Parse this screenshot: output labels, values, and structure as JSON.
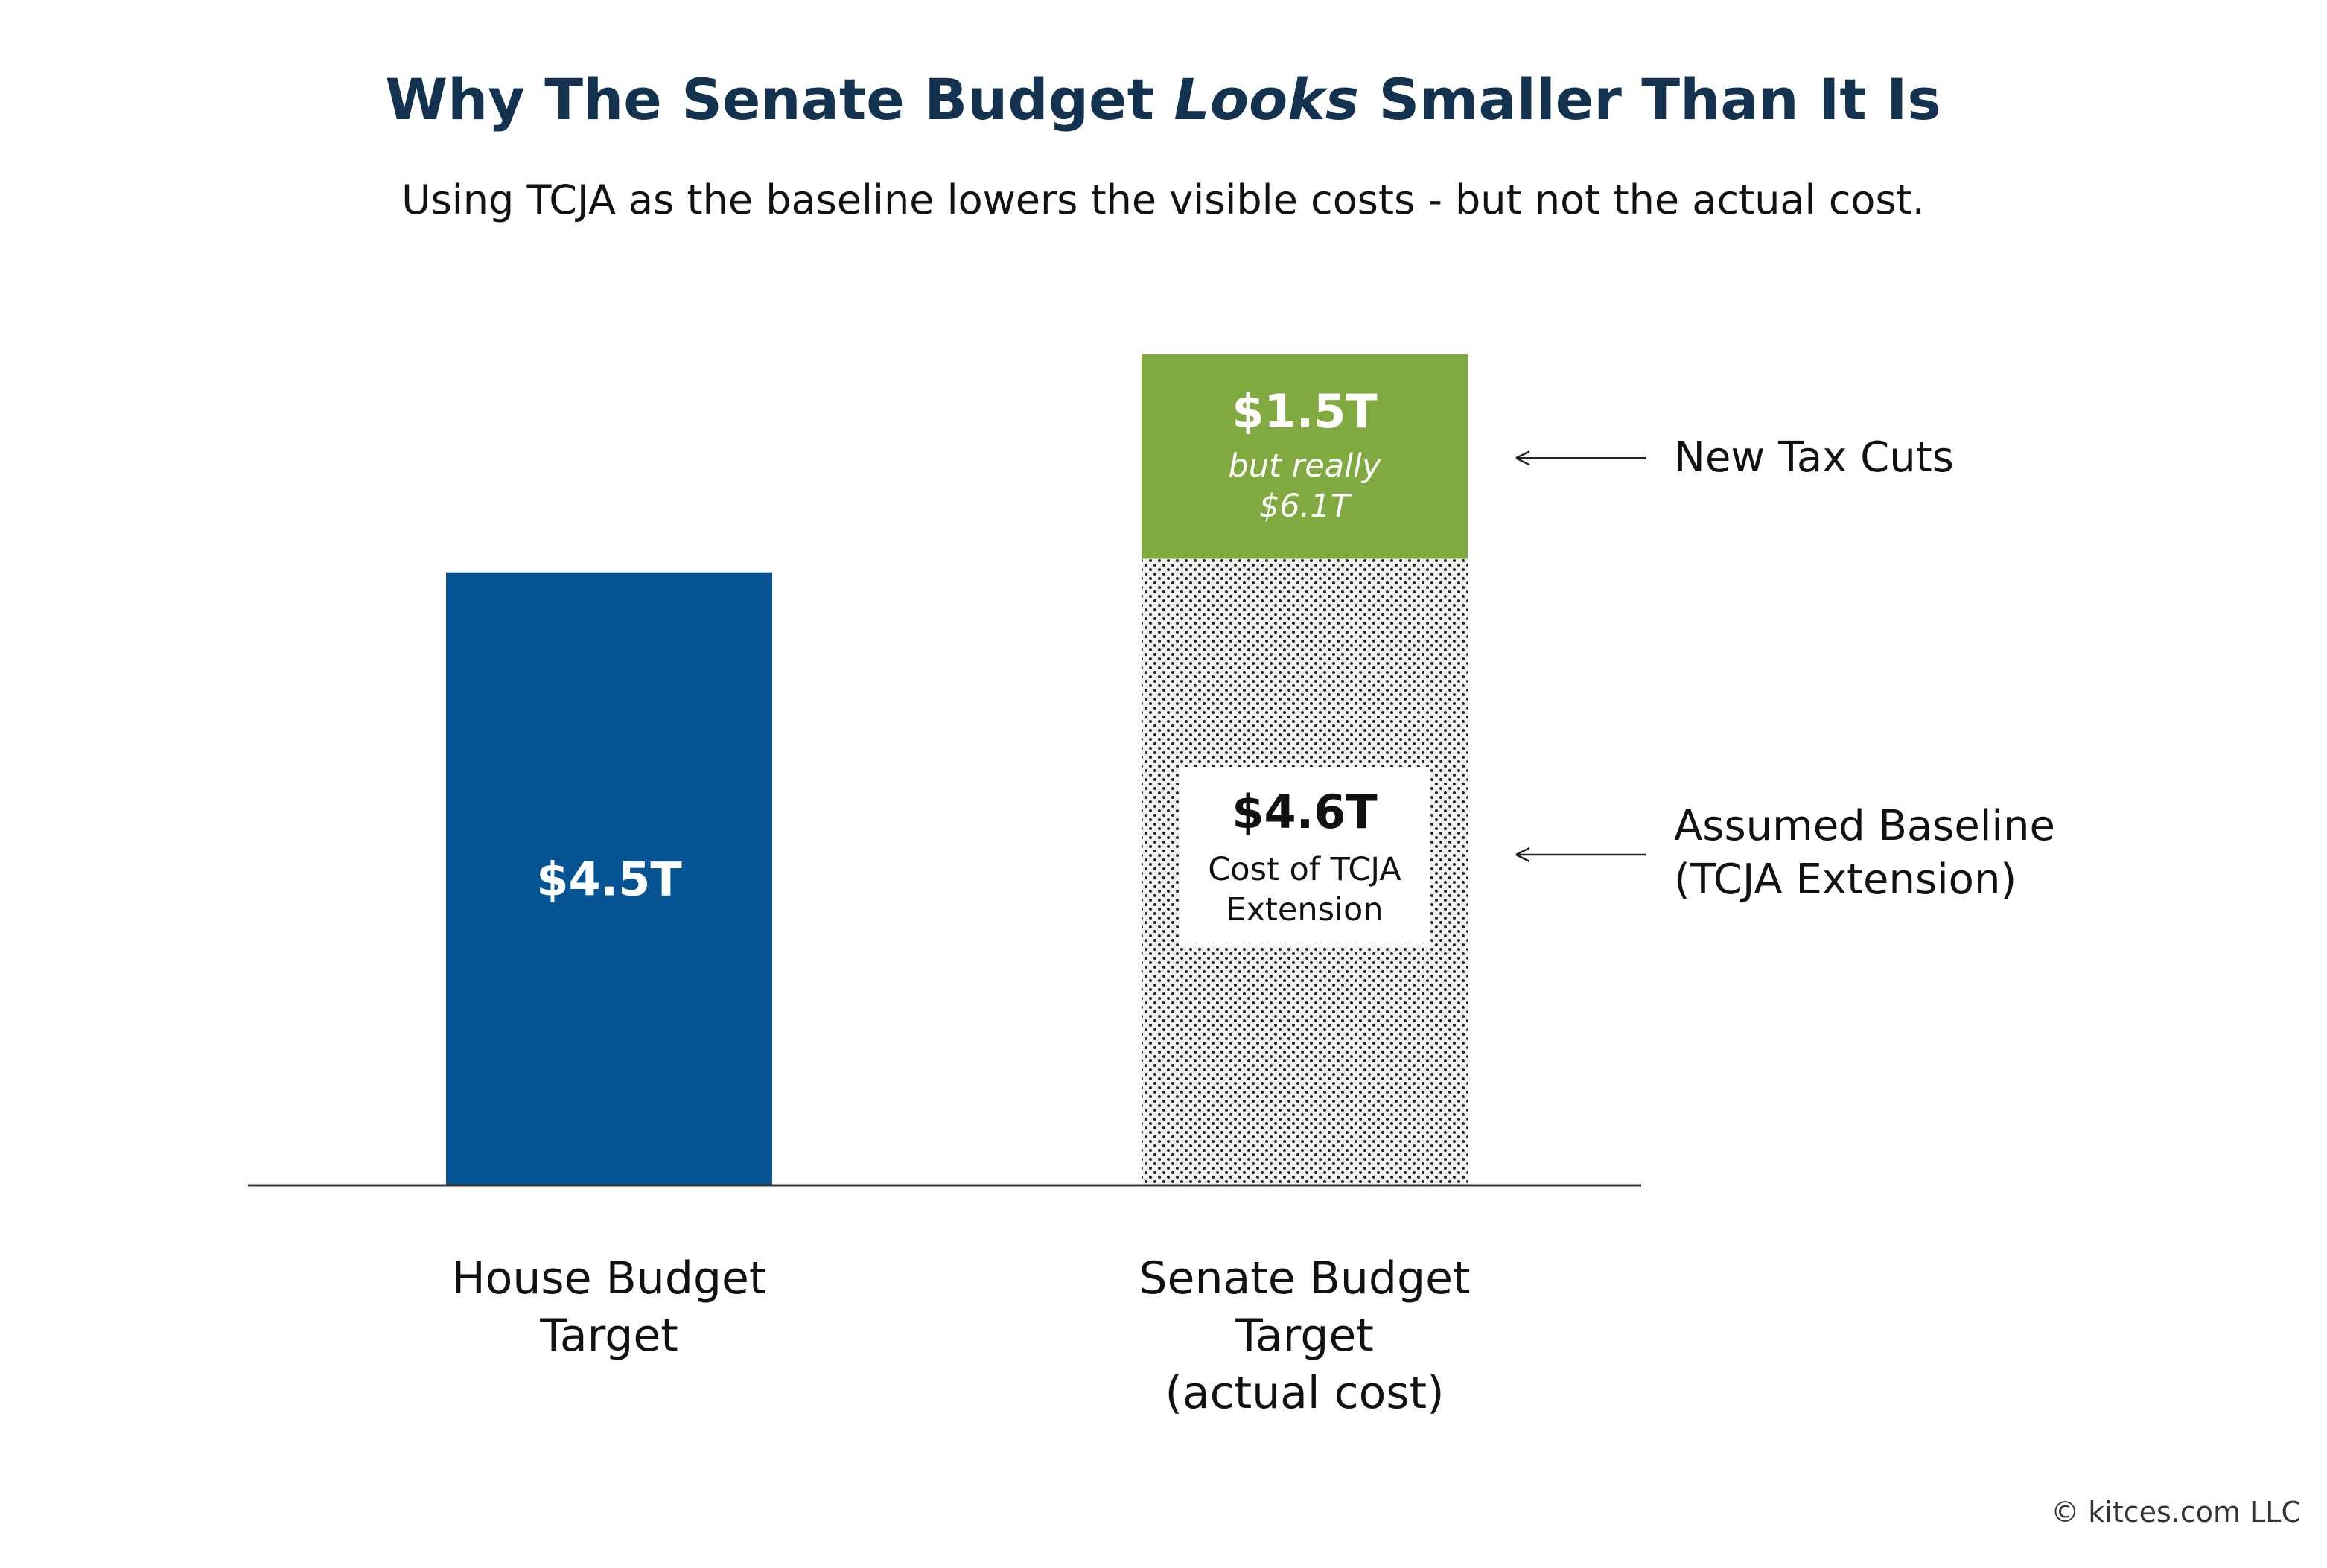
{
  "title_part1": "Why The Senate Budget ",
  "title_emphasis": "Looks",
  "title_part2": " Smaller Than It Is",
  "subtitle": "Using TCJA as the baseline lowers the visible costs - but not the actual cost.",
  "copyright": "© kitces.com LLC",
  "colors": {
    "title": "#12324f",
    "house_bar": "#065493",
    "new_tax_cuts": "#80a940",
    "baseline_dots": "#222222",
    "baseline_bg": "#f2f2f2"
  },
  "chart_data": {
    "type": "bar",
    "stacked": true,
    "categories": [
      [
        "House Budget",
        "Target"
      ],
      [
        "Senate Budget",
        "Target",
        "(actual cost)"
      ]
    ],
    "series": [
      {
        "name": "Assumed Baseline (TCJA Extension)",
        "values": [
          null,
          4.6
        ],
        "labels": [
          null,
          {
            "value": "$4.6T",
            "lines": [
              "Cost of TCJA",
              "Extension"
            ]
          }
        ]
      },
      {
        "name": "New Tax Cuts",
        "values": [
          null,
          1.5
        ],
        "labels": [
          null,
          {
            "value": "$1.5T",
            "lines": [
              "but really",
              "$6.1T"
            ]
          }
        ]
      }
    ],
    "house_bar": {
      "value": 4.5,
      "label": "$4.5T"
    },
    "annotations": [
      {
        "target": "New Tax Cuts",
        "lines": [
          "New Tax Cuts"
        ]
      },
      {
        "target": "Assumed Baseline",
        "lines": [
          "Assumed Baseline",
          "(TCJA Extension)"
        ]
      }
    ],
    "ylim": [
      0,
      6.1
    ],
    "unit": "trillions of dollars",
    "axes_visible": false,
    "grid": false,
    "legend": "none"
  }
}
